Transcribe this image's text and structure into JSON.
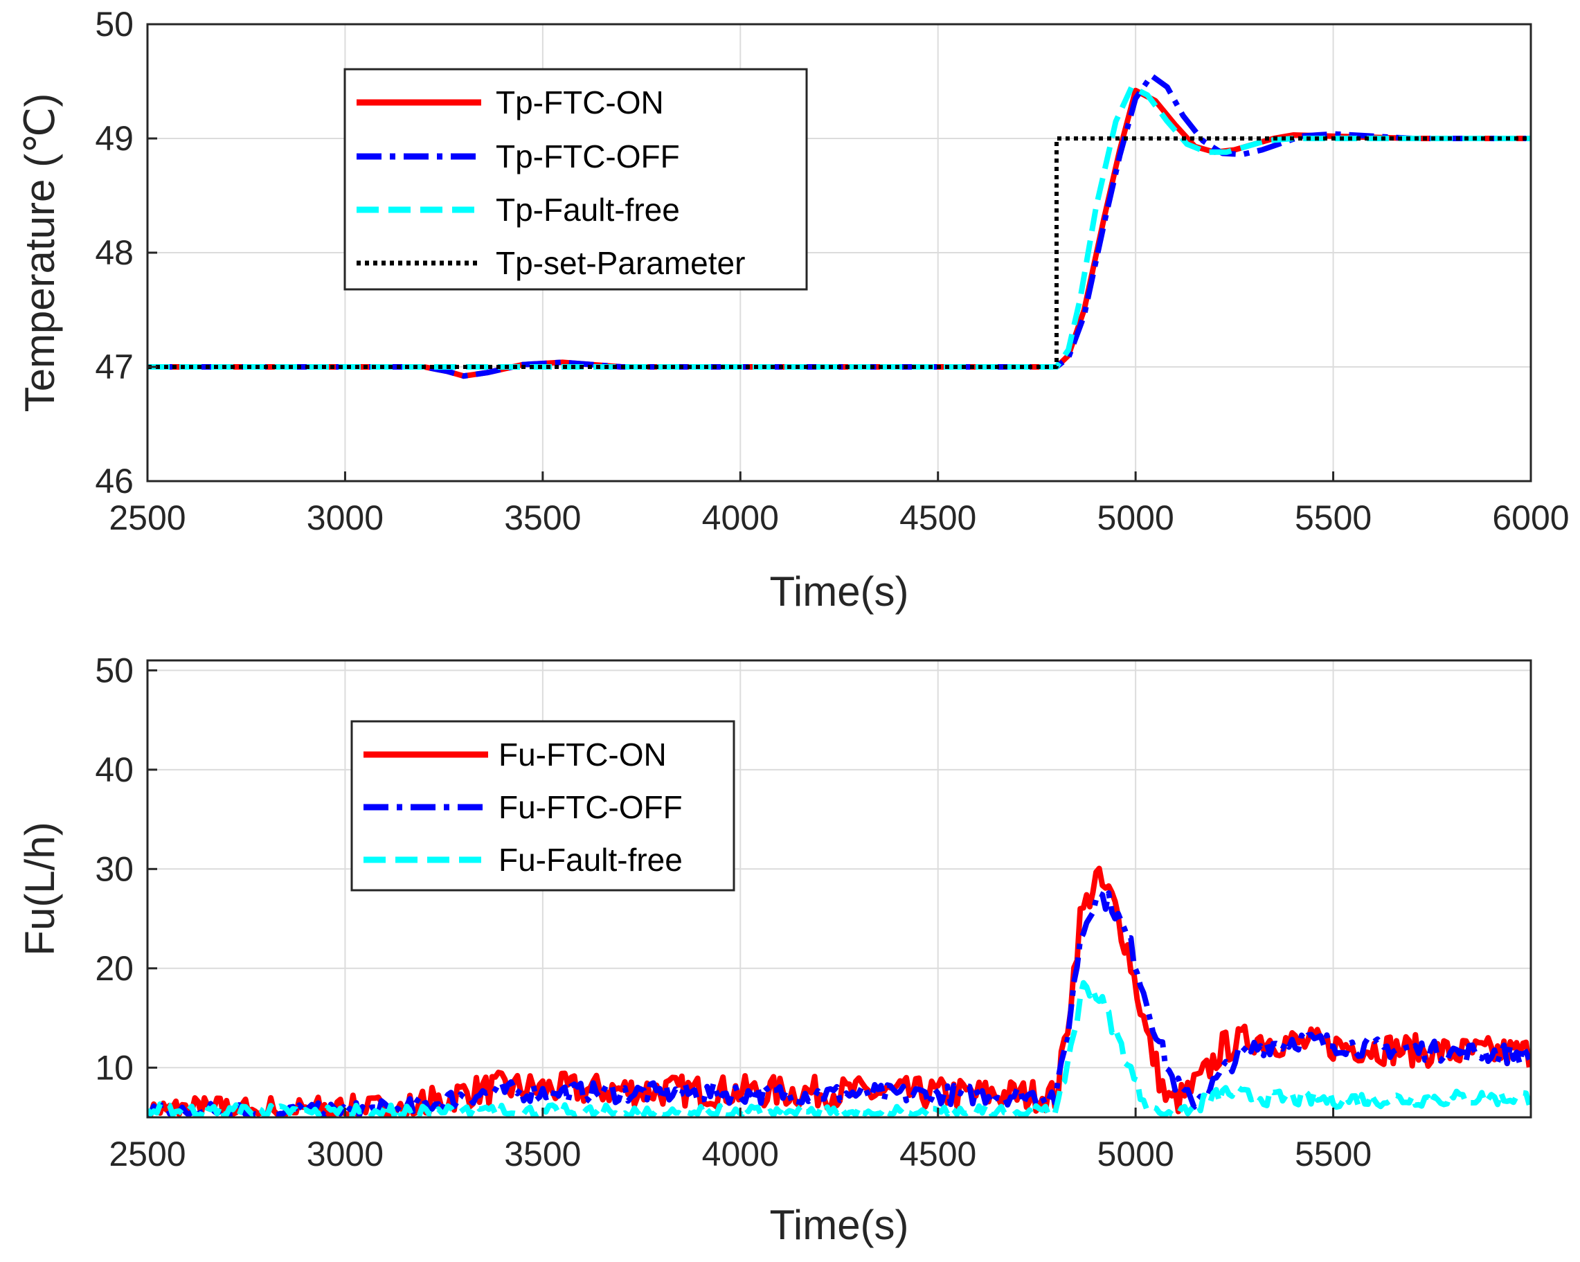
{
  "chart_data": [
    {
      "type": "line",
      "xlabel": "Time(s)",
      "ylabel": "Temperature (℃)",
      "xlim": [
        2500,
        6000
      ],
      "ylim": [
        46,
        50
      ],
      "xticks": [
        "2500",
        "3000",
        "3500",
        "4000",
        "4500",
        "5000",
        "5500",
        "6000"
      ],
      "yticks": [
        "46",
        "47",
        "48",
        "49",
        "50"
      ],
      "grid": true,
      "legend_position": "top-left",
      "series": [
        {
          "name": "Tp-FTC-ON",
          "color": "#ff0000",
          "style": "solid",
          "x": [
            2500,
            3200,
            3260,
            3300,
            3360,
            3450,
            3550,
            3700,
            4800,
            4830,
            4870,
            4920,
            4960,
            5000,
            5050,
            5100,
            5150,
            5200,
            5250,
            5300,
            5350,
            5400,
            5500,
            5700,
            6000
          ],
          "y": [
            47.0,
            47.0,
            46.96,
            46.92,
            46.95,
            47.02,
            47.04,
            47.0,
            47.0,
            47.1,
            47.5,
            48.3,
            48.9,
            49.42,
            49.33,
            49.12,
            48.93,
            48.88,
            48.9,
            48.95,
            49.0,
            49.03,
            49.02,
            49.0,
            49.0
          ]
        },
        {
          "name": "Tp-FTC-OFF",
          "color": "#0000ff",
          "style": "dashdot",
          "x": [
            2500,
            3200,
            3260,
            3300,
            3360,
            3450,
            3550,
            3700,
            4800,
            4830,
            4870,
            4920,
            4960,
            5000,
            5040,
            5080,
            5120,
            5170,
            5220,
            5270,
            5320,
            5370,
            5420,
            5500,
            5700,
            6000
          ],
          "y": [
            47.0,
            47.0,
            46.96,
            46.92,
            46.95,
            47.02,
            47.04,
            47.0,
            47.0,
            47.08,
            47.45,
            48.25,
            48.85,
            49.35,
            49.55,
            49.45,
            49.2,
            48.98,
            48.87,
            48.86,
            48.9,
            48.96,
            49.02,
            49.04,
            49.0,
            49.0
          ]
        },
        {
          "name": "Tp-Fault-free",
          "color": "#00ffff",
          "style": "dashed",
          "x": [
            2500,
            4800,
            4830,
            4860,
            4900,
            4950,
            4990,
            5030,
            5080,
            5130,
            5180,
            5230,
            5280,
            5330,
            5400,
            5600,
            6000
          ],
          "y": [
            47.0,
            47.0,
            47.15,
            47.6,
            48.4,
            49.15,
            49.45,
            49.38,
            49.15,
            48.95,
            48.88,
            48.88,
            48.93,
            48.98,
            49.0,
            49.0,
            49.0
          ]
        },
        {
          "name": "Tp-set-Parameter",
          "color": "#000000",
          "style": "dotted",
          "x": [
            2500,
            4800,
            4800,
            6000
          ],
          "y": [
            47.0,
            47.0,
            49.0,
            49.0
          ]
        }
      ]
    },
    {
      "type": "line",
      "xlabel": "Time(s)",
      "ylabel": "Fu(L/h)",
      "xlim": [
        2500,
        6000
      ],
      "ylim": [
        5,
        51
      ],
      "xticks": [
        "2500",
        "3000",
        "3500",
        "4000",
        "4500",
        "5000",
        "5500"
      ],
      "yticks": [
        "10",
        "20",
        "30",
        "40",
        "50"
      ],
      "grid": true,
      "legend_position": "top-left",
      "series": [
        {
          "name": "Fu-FTC-ON",
          "color": "#ff0000",
          "style": "solid",
          "noise": 1.6,
          "x": [
            2500,
            3000,
            3150,
            3250,
            3300,
            3400,
            3600,
            4000,
            4500,
            4790,
            4800,
            4830,
            4860,
            4900,
            4940,
            4980,
            5030,
            5080,
            5120,
            5170,
            5220,
            5300,
            5400,
            5600,
            5800,
            6000
          ],
          "y": [
            5.6,
            5.6,
            5.8,
            6.8,
            7.5,
            8.0,
            7.8,
            7.6,
            7.4,
            7.2,
            7.0,
            15.0,
            25.0,
            29.0,
            27.0,
            22.0,
            13.0,
            6.5,
            7.0,
            9.0,
            12.0,
            13.0,
            12.5,
            12.0,
            11.5,
            11.5
          ]
        },
        {
          "name": "Fu-FTC-OFF",
          "color": "#0000ff",
          "style": "dashdot",
          "noise": 1.0,
          "x": [
            2500,
            3000,
            3150,
            3250,
            3300,
            3400,
            3600,
            4000,
            4500,
            4790,
            4800,
            4830,
            4860,
            4900,
            4940,
            4990,
            5040,
            5090,
            5140,
            5190,
            5240,
            5300,
            5400,
            5600,
            5800,
            6000
          ],
          "y": [
            5.5,
            5.5,
            5.8,
            6.6,
            7.2,
            7.6,
            7.5,
            7.4,
            7.3,
            7.2,
            7.0,
            14.0,
            23.0,
            27.5,
            26.5,
            22.0,
            15.0,
            9.0,
            6.5,
            8.0,
            10.5,
            12.0,
            12.8,
            12.0,
            11.6,
            11.3
          ]
        },
        {
          "name": "Fu-Fault-free",
          "color": "#00ffff",
          "style": "dashed",
          "noise": 0.8,
          "x": [
            2500,
            3000,
            3300,
            4000,
            4790,
            4800,
            4830,
            4870,
            4910,
            4960,
            5010,
            5060,
            5120,
            5170,
            5230,
            5300,
            5500,
            6000
          ],
          "y": [
            5.6,
            5.4,
            5.5,
            5.4,
            5.4,
            5.2,
            11.0,
            18.5,
            17.0,
            12.5,
            7.5,
            5.0,
            5.2,
            6.5,
            7.5,
            7.0,
            6.8,
            7.0
          ]
        }
      ]
    }
  ]
}
